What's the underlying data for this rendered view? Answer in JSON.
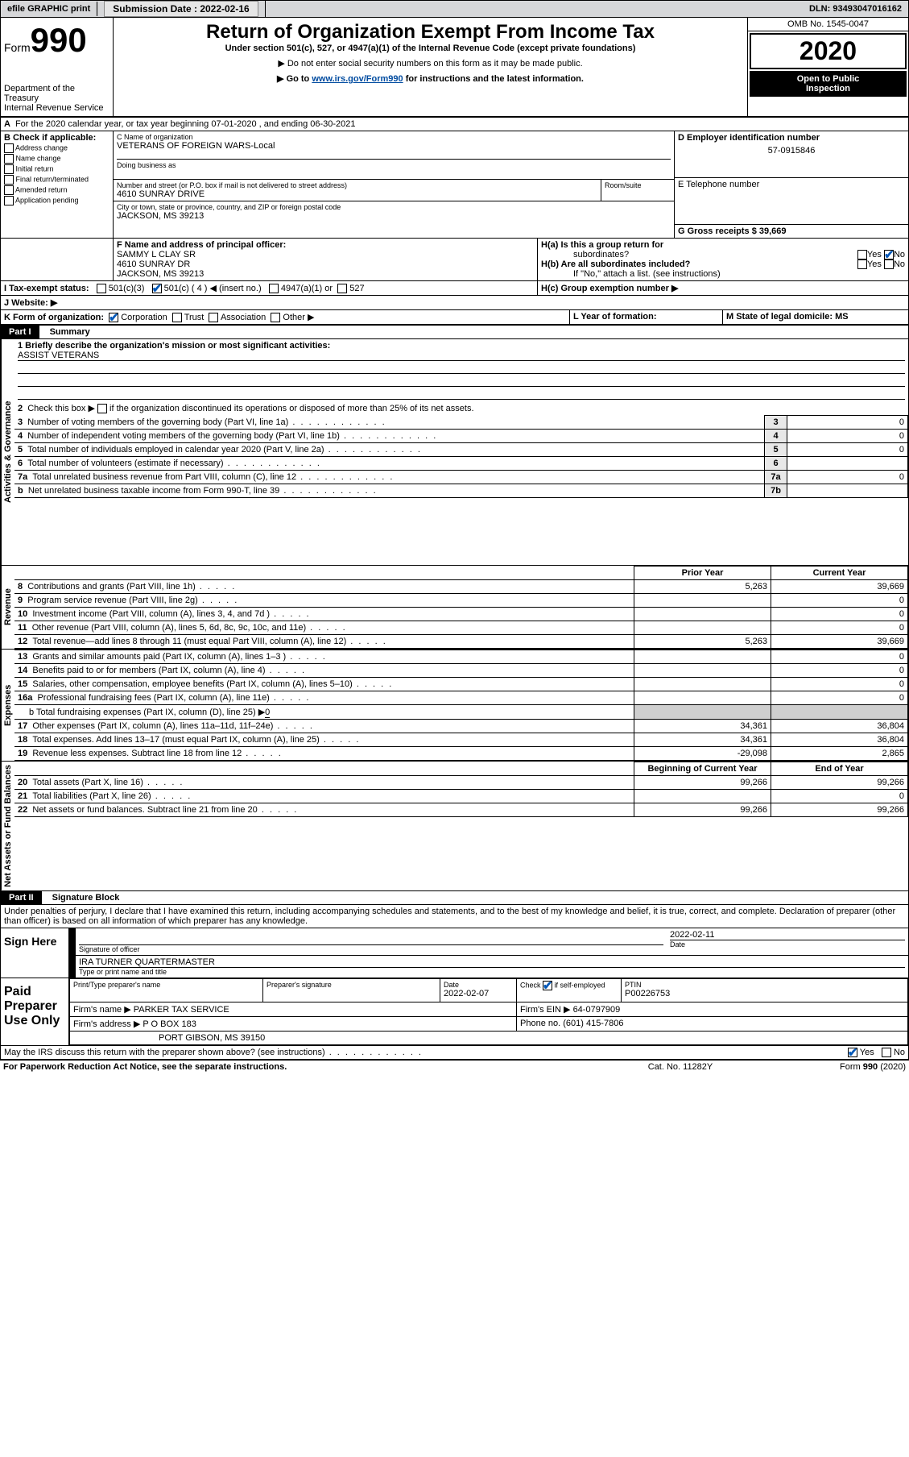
{
  "topbar": {
    "efile_label": "efile GRAPHIC print",
    "submission_label": "Submission Date : 2022-02-16",
    "dln_label": "DLN: 93493047016162"
  },
  "header": {
    "form_word": "Form",
    "form_number": "990",
    "dept": "Department of the Treasury",
    "irs": "Internal Revenue Service",
    "title": "Return of Organization Exempt From Income Tax",
    "subtitle": "Under section 501(c), 527, or 4947(a)(1) of the Internal Revenue Code (except private foundations)",
    "note1": "▶ Do not enter social security numbers on this form as it may be made public.",
    "note2_pre": "▶ Go to ",
    "note2_link": "www.irs.gov/Form990",
    "note2_post": " for instructions and the latest information.",
    "omb": "OMB No. 1545-0047",
    "year": "2020",
    "open_public": "Open to Public",
    "inspection": "Inspection"
  },
  "line_a": "For the 2020 calendar year, or tax year beginning 07-01-2020   , and ending 06-30-2021",
  "box_b": {
    "title": "B Check if applicable:",
    "items": [
      "Address change",
      "Name change",
      "Initial return",
      "Final return/terminated",
      "Amended return",
      "Application pending"
    ]
  },
  "box_c": {
    "name_label": "C Name of organization",
    "org_name": "VETERANS OF FOREIGN WARS-Local",
    "dba_label": "Doing business as",
    "addr_label": "Number and street (or P.O. box if mail is not delivered to street address)",
    "room_label": "Room/suite",
    "address": "4610 SUNRAY DRIVE",
    "city_label": "City or town, state or province, country, and ZIP or foreign postal code",
    "city": "JACKSON, MS  39213"
  },
  "box_d": {
    "label": "D Employer identification number",
    "value": "57-0915846"
  },
  "box_e": {
    "label": "E Telephone number"
  },
  "box_g": {
    "label": "G Gross receipts $ 39,669"
  },
  "box_f": {
    "label": "F  Name and address of principal officer:",
    "line1": "SAMMY L CLAY SR",
    "line2": "4610 SUNRAY DR",
    "line3": "JACKSON, MS  39213"
  },
  "box_h": {
    "ha": "H(a)  Is this a group return for",
    "ha2": "subordinates?",
    "hb": "H(b)  Are all subordinates included?",
    "hb_note": "If \"No,\" attach a list. (see instructions)",
    "hc": "H(c)  Group exemption number ▶",
    "yes": "Yes",
    "no": "No"
  },
  "line_i": {
    "label": "I     Tax-exempt status:",
    "o1": "501(c)(3)",
    "o2_pre": "501(c) ( 4 ) ",
    "o2_post": "◀ (insert no.)",
    "o3": "4947(a)(1) or",
    "o4": "527"
  },
  "line_j": "J     Website: ▶",
  "line_k": {
    "label": "K Form of organization:",
    "corp": "Corporation",
    "trust": "Trust",
    "assoc": "Association",
    "other": "Other ▶"
  },
  "line_l": "L Year of formation:",
  "line_m": "M State of legal domicile: MS",
  "part1": {
    "label": "Part I",
    "title": "Summary",
    "side_ag": "Activities & Governance",
    "side_rev": "Revenue",
    "side_exp": "Expenses",
    "side_net": "Net Assets or Fund Balances",
    "q1": "1  Briefly describe the organization's mission or most significant activities:",
    "q1_ans": "ASSIST VETERANS",
    "q2": "2    Check this box ▶         if the organization discontinued its operations or disposed of more than 25% of its net assets.",
    "rows_gov": [
      {
        "n": "3",
        "t": "Number of voting members of the governing body (Part VI, line 1a)",
        "b": "3",
        "v": "0"
      },
      {
        "n": "4",
        "t": "Number of independent voting members of the governing body (Part VI, line 1b)",
        "b": "4",
        "v": "0"
      },
      {
        "n": "5",
        "t": "Total number of individuals employed in calendar year 2020 (Part V, line 2a)",
        "b": "5",
        "v": "0"
      },
      {
        "n": "6",
        "t": "Total number of volunteers (estimate if necessary)",
        "b": "6",
        "v": ""
      },
      {
        "n": "7a",
        "t": "Total unrelated business revenue from Part VIII, column (C), line 12",
        "b": "7a",
        "v": "0"
      },
      {
        "n": "b",
        "t": "Net unrelated business taxable income from Form 990-T, line 39",
        "b": "7b",
        "v": ""
      }
    ],
    "hdr_prior": "Prior Year",
    "hdr_curr": "Current Year",
    "rows_rev": [
      {
        "n": "8",
        "t": "Contributions and grants (Part VIII, line 1h)",
        "p": "5,263",
        "c": "39,669"
      },
      {
        "n": "9",
        "t": "Program service revenue (Part VIII, line 2g)",
        "p": "",
        "c": "0"
      },
      {
        "n": "10",
        "t": "Investment income (Part VIII, column (A), lines 3, 4, and 7d )",
        "p": "",
        "c": "0"
      },
      {
        "n": "11",
        "t": "Other revenue (Part VIII, column (A), lines 5, 6d, 8c, 9c, 10c, and 11e)",
        "p": "",
        "c": "0"
      },
      {
        "n": "12",
        "t": "Total revenue—add lines 8 through 11 (must equal Part VIII, column (A), line 12)",
        "p": "5,263",
        "c": "39,669"
      }
    ],
    "rows_exp": [
      {
        "n": "13",
        "t": "Grants and similar amounts paid (Part IX, column (A), lines 1–3 )",
        "p": "",
        "c": "0"
      },
      {
        "n": "14",
        "t": "Benefits paid to or for members (Part IX, column (A), line 4)",
        "p": "",
        "c": "0"
      },
      {
        "n": "15",
        "t": "Salaries, other compensation, employee benefits (Part IX, column (A), lines 5–10)",
        "p": "",
        "c": "0"
      },
      {
        "n": "16a",
        "t": "Professional fundraising fees (Part IX, column (A), line 11e)",
        "p": "",
        "c": "0"
      }
    ],
    "row_16b_pre": "b   Total fundraising expenses (Part IX, column (D), line 25) ▶",
    "row_16b_val": "0",
    "rows_exp2": [
      {
        "n": "17",
        "t": "Other expenses (Part IX, column (A), lines 11a–11d, 11f–24e)",
        "p": "34,361",
        "c": "36,804"
      },
      {
        "n": "18",
        "t": "Total expenses. Add lines 13–17 (must equal Part IX, column (A), line 25)",
        "p": "34,361",
        "c": "36,804"
      },
      {
        "n": "19",
        "t": "Revenue less expenses. Subtract line 18 from line 12",
        "p": "-29,098",
        "c": "2,865"
      }
    ],
    "hdr_beg": "Beginning of Current Year",
    "hdr_end": "End of Year",
    "rows_net": [
      {
        "n": "20",
        "t": "Total assets (Part X, line 16)",
        "p": "99,266",
        "c": "99,266"
      },
      {
        "n": "21",
        "t": "Total liabilities (Part X, line 26)",
        "p": "",
        "c": "0"
      },
      {
        "n": "22",
        "t": "Net assets or fund balances. Subtract line 21 from line 20",
        "p": "99,266",
        "c": "99,266"
      }
    ]
  },
  "part2": {
    "label": "Part II",
    "title": "Signature Block",
    "decl": "Under penalties of perjury, I declare that I have examined this return, including accompanying schedules and statements, and to the best of my knowledge and belief, it is true, correct, and complete. Declaration of preparer (other than officer) is based on all information of which preparer has any knowledge."
  },
  "sign_here": {
    "label": "Sign Here",
    "sig_officer": "Signature of officer",
    "date_label": "Date",
    "date_val": "2022-02-11",
    "name_line": "IRA TURNER  QUARTERMASTER",
    "type_label": "Type or print name and title"
  },
  "paid_prep": {
    "label": "Paid Preparer Use Only",
    "c1": "Print/Type preparer's name",
    "c2": "Preparer's signature",
    "c3": "Date",
    "date_val": "2022-02-07",
    "c4_pre": "Check        if self-employed",
    "c5": "PTIN",
    "ptin": "P00226753",
    "firm_name_label": "Firm's name     ▶",
    "firm_name": "PARKER TAX SERVICE",
    "firm_ein_label": "Firm's EIN ▶",
    "firm_ein": "64-0797909",
    "firm_addr_label": "Firm's address ▶",
    "firm_addr1": "P O BOX 183",
    "firm_addr2": "PORT GIBSON, MS  39150",
    "phone_label": "Phone no.",
    "phone": "(601) 415-7806"
  },
  "footer": {
    "irs_discuss": "May the IRS discuss this return with the preparer shown above? (see instructions)",
    "yes": "Yes",
    "no": "No",
    "paperwork": "For Paperwork Reduction Act Notice, see the separate instructions.",
    "catno": "Cat. No. 11282Y",
    "formrev": "Form 990 (2020)"
  }
}
